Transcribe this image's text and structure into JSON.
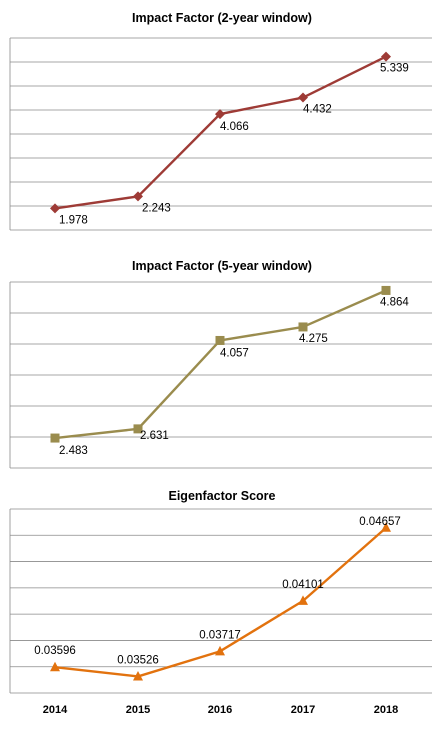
{
  "chart_data": [
    {
      "type": "line",
      "title": "Impact Factor (2-year window)",
      "categories": [
        "2014",
        "2015",
        "2016",
        "2017",
        "2018"
      ],
      "series": [
        {
          "values": [
            1.978,
            2.243,
            4.066,
            4.432,
            5.339
          ]
        }
      ],
      "data_labels": [
        "1.978",
        "2.243",
        "4.066",
        "4.432",
        "5.339"
      ],
      "ylim": [
        1.5,
        5.75
      ],
      "grid": true,
      "marker": "diamond",
      "color": "#9E3B36",
      "show_x_ticks": false
    },
    {
      "type": "line",
      "title": "Impact Factor (5-year window)",
      "categories": [
        "2014",
        "2015",
        "2016",
        "2017",
        "2018"
      ],
      "series": [
        {
          "values": [
            2.483,
            2.631,
            4.057,
            4.275,
            4.864
          ]
        }
      ],
      "data_labels": [
        "2.483",
        "2.631",
        "4.057",
        "4.275",
        "4.864"
      ],
      "ylim": [
        2.0,
        5.0
      ],
      "grid": true,
      "marker": "square",
      "color": "#9A8C4E",
      "show_x_ticks": false
    },
    {
      "type": "line",
      "title": "Eigenfactor Score",
      "categories": [
        "2014",
        "2015",
        "2016",
        "2017",
        "2018"
      ],
      "series": [
        {
          "values": [
            0.03596,
            0.03526,
            0.03717,
            0.04101,
            0.04657
          ]
        }
      ],
      "data_labels": [
        "0.03596",
        "0.03526",
        "0.03717",
        "0.04101",
        "0.04657"
      ],
      "ylim": [
        0.034,
        0.048
      ],
      "grid": true,
      "marker": "triangle",
      "color": "#E2720E",
      "show_x_ticks": true
    }
  ]
}
